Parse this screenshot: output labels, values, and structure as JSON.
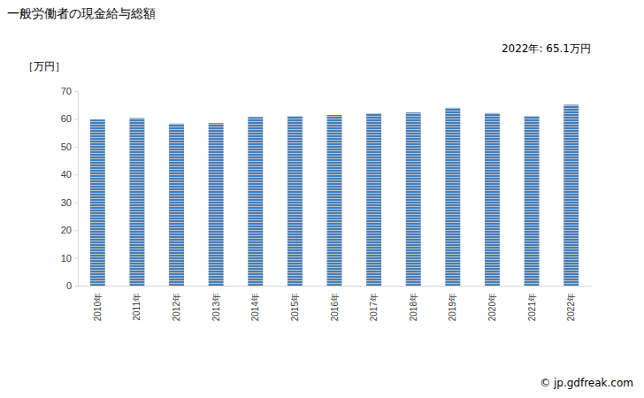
{
  "chart_data": {
    "type": "bar",
    "title": "一般労働者の現金給与総額",
    "y_label": "［万円］",
    "annotation": "2022年: 65.1万円",
    "source": "© jp.gdfreak.com",
    "categories": [
      "2010年",
      "2011年",
      "2012年",
      "2013年",
      "2014年",
      "2015年",
      "2016年",
      "2017年",
      "2018年",
      "2019年",
      "2020年",
      "2021年",
      "2022年"
    ],
    "values": [
      59.8,
      60.3,
      58.3,
      58.5,
      60.7,
      61.0,
      61.4,
      62.0,
      62.3,
      64.0,
      62.1,
      61.0,
      65.1
    ],
    "color": "#4a7db3",
    "ylim": [
      0,
      70
    ],
    "yticks": [
      0,
      10,
      20,
      30,
      40,
      50,
      60,
      70
    ],
    "grid": false
  }
}
